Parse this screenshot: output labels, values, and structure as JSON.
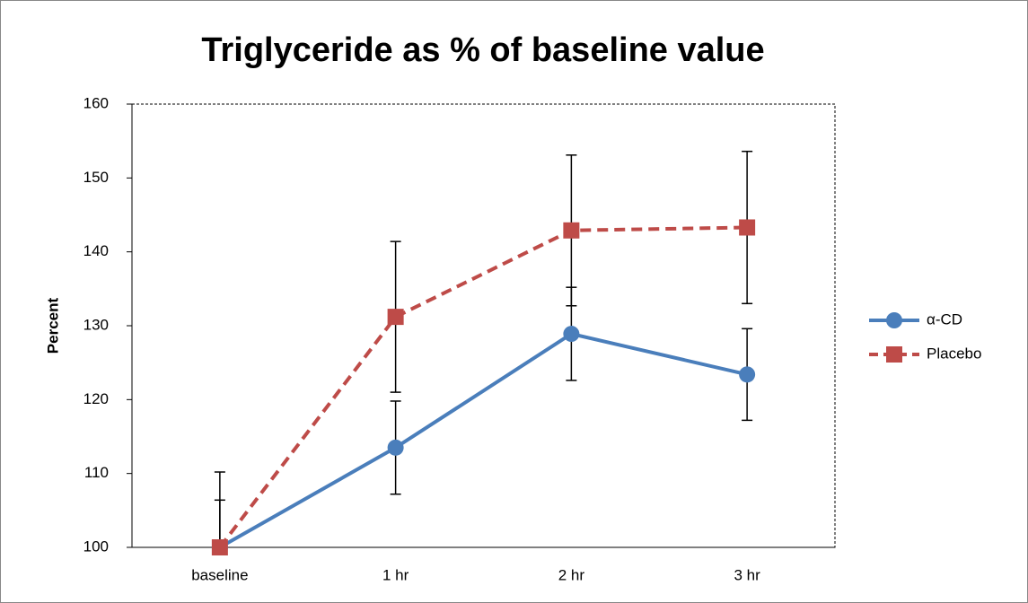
{
  "chart_data": {
    "type": "line",
    "title": "Triglyceride as % of baseline value",
    "y_label": "Percent",
    "categories": [
      "baseline",
      "1 hr",
      "2 hr",
      "3 hr"
    ],
    "series": [
      {
        "name": "α-CD",
        "color": "#4a7ebb",
        "marker": "circle",
        "dash": false,
        "values": [
          100,
          113.5,
          128.9,
          123.4
        ],
        "errors": [
          6.4,
          6.3,
          6.3,
          6.2
        ]
      },
      {
        "name": "Placebo",
        "color": "#be4b48",
        "marker": "square",
        "dash": true,
        "values": [
          100,
          131.2,
          142.9,
          143.3
        ],
        "errors": [
          10.2,
          10.2,
          10.2,
          10.3
        ]
      }
    ],
    "ylim": [
      100,
      160
    ],
    "yticks": [
      100,
      110,
      120,
      130,
      140,
      150,
      160
    ],
    "legend": "right"
  }
}
